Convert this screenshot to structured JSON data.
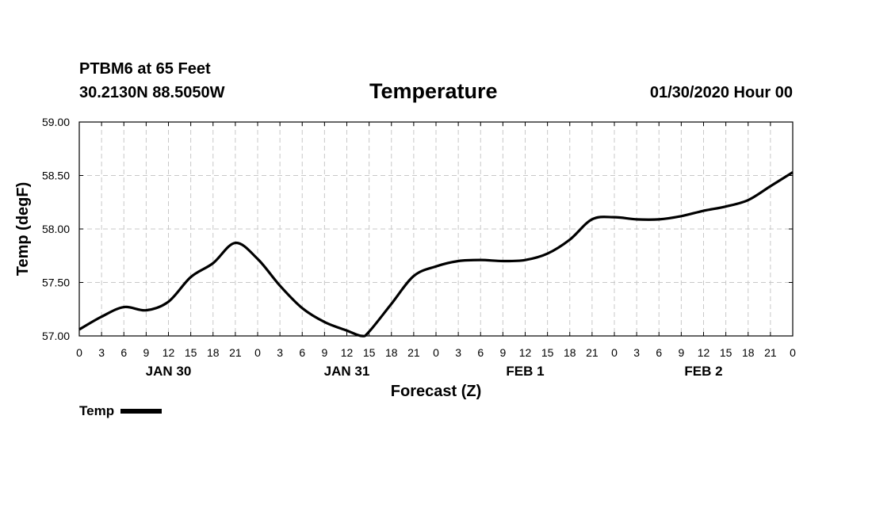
{
  "header": {
    "station": "PTBM6 at 65 Feet",
    "coords": "30.2130N 88.5050W",
    "title": "Temperature",
    "run_time": "01/30/2020 Hour 00"
  },
  "chart_data": {
    "type": "line",
    "title": "Temperature",
    "xlabel": "Forecast (Z)",
    "ylabel": "Temp (degF)",
    "xlim": [
      0,
      96
    ],
    "ylim": [
      57.0,
      59.0
    ],
    "y_ticks": [
      57.0,
      57.5,
      58.0,
      58.5,
      59.0
    ],
    "y_tick_labels": [
      "57.00",
      "57.50",
      "58.00",
      "58.50",
      "59.00"
    ],
    "x_ticks": [
      0,
      3,
      6,
      9,
      12,
      15,
      18,
      21,
      24,
      27,
      30,
      33,
      36,
      39,
      42,
      45,
      48,
      51,
      54,
      57,
      60,
      63,
      66,
      69,
      72,
      75,
      78,
      81,
      84,
      87,
      90,
      93,
      96
    ],
    "x_tick_labels": [
      "0",
      "3",
      "6",
      "9",
      "12",
      "15",
      "18",
      "21",
      "0",
      "3",
      "6",
      "9",
      "12",
      "15",
      "18",
      "21",
      "0",
      "3",
      "6",
      "9",
      "12",
      "15",
      "18",
      "21",
      "0",
      "3",
      "6",
      "9",
      "12",
      "15",
      "18",
      "21",
      "0"
    ],
    "date_labels": [
      {
        "text": "JAN 30",
        "x": 12
      },
      {
        "text": "JAN 31",
        "x": 36
      },
      {
        "text": "FEB 1",
        "x": 60
      },
      {
        "text": "FEB 2",
        "x": 84
      }
    ],
    "grid": true,
    "legend_position": "bottom-left",
    "series": [
      {
        "name": "Temp",
        "color": "#000000",
        "x": [
          0,
          3,
          6,
          9,
          12,
          15,
          18,
          21,
          24,
          27,
          30,
          33,
          36,
          38,
          39,
          42,
          45,
          48,
          51,
          54,
          57,
          60,
          63,
          66,
          69,
          72,
          75,
          78,
          81,
          84,
          87,
          90,
          93,
          96
        ],
        "values": [
          57.06,
          57.18,
          57.27,
          57.24,
          57.32,
          57.55,
          57.68,
          57.87,
          57.72,
          57.47,
          57.26,
          57.13,
          57.05,
          57.0,
          57.04,
          57.3,
          57.56,
          57.65,
          57.7,
          57.71,
          57.7,
          57.71,
          57.77,
          57.9,
          58.09,
          58.11,
          58.09,
          58.09,
          58.12,
          58.17,
          58.21,
          58.27,
          58.4,
          58.53
        ]
      }
    ]
  }
}
